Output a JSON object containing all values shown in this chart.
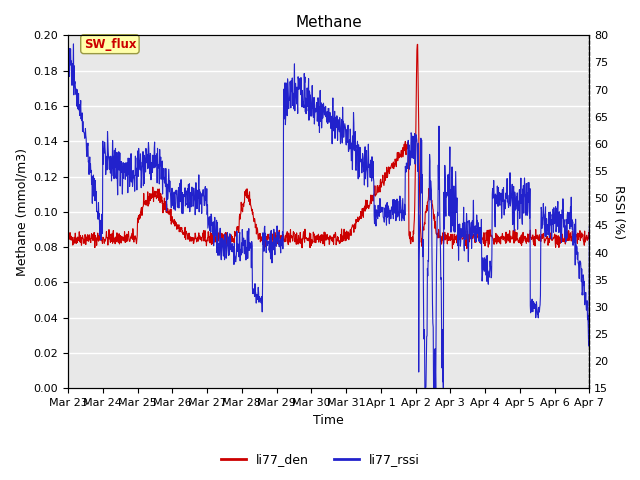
{
  "title": "Methane",
  "xlabel": "Time",
  "ylabel_left": "Methane (mmol/m3)",
  "ylabel_right": "RSSI (%)",
  "ylim_left": [
    0.0,
    0.2
  ],
  "ylim_right": [
    15,
    80
  ],
  "yticks_left": [
    0.0,
    0.02,
    0.04,
    0.06,
    0.08,
    0.1,
    0.12,
    0.14,
    0.16,
    0.18,
    0.2
  ],
  "yticks_right": [
    15,
    20,
    25,
    30,
    35,
    40,
    45,
    50,
    55,
    60,
    65,
    70,
    75,
    80
  ],
  "xtick_labels": [
    "Mar 23",
    "Mar 24",
    "Mar 25",
    "Mar 26",
    "Mar 27",
    "Mar 28",
    "Mar 29",
    "Mar 30",
    "Mar 31",
    "Apr 1",
    "Apr 2",
    "Apr 3",
    "Apr 4",
    "Apr 5",
    "Apr 6",
    "Apr 7"
  ],
  "color_den": "#cc0000",
  "color_rssi": "#2222cc",
  "legend_labels": [
    "li77_den",
    "li77_rssi"
  ],
  "annotation_text": "SW_flux",
  "annotation_color": "#cc0000",
  "annotation_bg": "#ffffaa",
  "annotation_border": "#999944",
  "plot_bg": "#e8e8e8",
  "fig_bg": "#ffffff",
  "grid_color": "#ffffff",
  "title_fontsize": 11,
  "label_fontsize": 9,
  "tick_fontsize": 8
}
